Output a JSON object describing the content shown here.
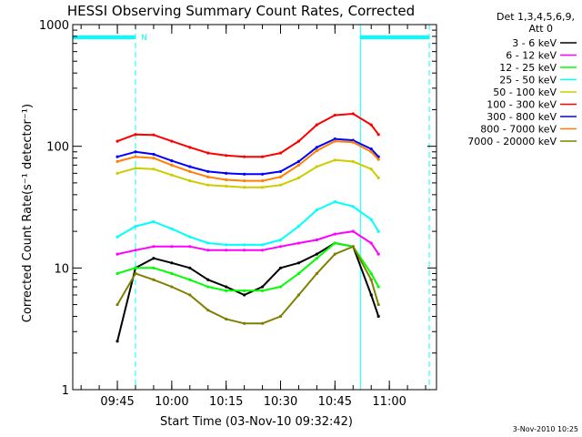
{
  "chart_data": {
    "type": "line",
    "title": "HESSI Observing Summary Count Rates, Corrected",
    "xlabel": "Start Time (03-Nov-10 09:32:42)",
    "ylabel": "Corrected Count Rate",
    "ylabel_units": "(s⁻¹ detector⁻¹)",
    "yscale": "log",
    "ylim": [
      1,
      1000
    ],
    "xlim": [
      "09:32:42",
      "11:13:00"
    ],
    "x_ticks": [
      "09:45",
      "10:00",
      "10:15",
      "10:30",
      "10:45",
      "11:00"
    ],
    "y_ticks": [
      "1",
      "10",
      "100",
      "1000"
    ],
    "grid": false,
    "legend_position": "right",
    "legend_header": [
      "Det 1,3,4,5,6,9,",
      "Att 0"
    ],
    "footer_date": "3-Nov-2010 10:25",
    "annotations": [
      {
        "text": "N",
        "time": "09:50:00"
      }
    ],
    "status_bars": [
      {
        "start": "09:32:42",
        "end": "09:50:00"
      },
      {
        "start": "10:52:00",
        "end": "11:11:00"
      }
    ],
    "vertical_markers": [
      {
        "time": "09:32:42",
        "style": "solid"
      },
      {
        "time": "09:50:00",
        "style": "dashed"
      },
      {
        "time": "10:52:00",
        "style": "solid"
      },
      {
        "time": "11:11:00",
        "style": "dashed"
      }
    ],
    "data_start": "09:45",
    "data_end": "10:57",
    "x_times": [
      "09:45",
      "09:50",
      "09:55",
      "10:00",
      "10:05",
      "10:10",
      "10:15",
      "10:20",
      "10:25",
      "10:30",
      "10:35",
      "10:40",
      "10:45",
      "10:50",
      "10:55",
      "10:57"
    ],
    "series": [
      {
        "name": "3 - 6 keV",
        "color": "#000000",
        "values": [
          2.5,
          10,
          12,
          11,
          10,
          8,
          7,
          6,
          7,
          10,
          11,
          13,
          16,
          15,
          6,
          4
        ]
      },
      {
        "name": "6 - 12 keV",
        "color": "#ff00ff",
        "values": [
          13,
          14,
          15,
          15,
          15,
          14,
          14,
          14,
          14,
          15,
          16,
          17,
          19,
          20,
          16,
          13
        ]
      },
      {
        "name": "12 - 25 keV",
        "color": "#00ff00",
        "values": [
          9,
          10,
          10,
          9,
          8,
          7,
          6.5,
          6.5,
          6.5,
          7,
          9,
          12,
          16,
          15,
          9,
          7
        ]
      },
      {
        "name": "25 - 50 keV",
        "color": "#00ffff",
        "values": [
          18,
          22,
          24,
          21,
          18,
          16,
          15.5,
          15.5,
          15.5,
          17,
          22,
          30,
          35,
          32,
          25,
          20
        ]
      },
      {
        "name": "50 - 100 keV",
        "color": "#cccc00",
        "values": [
          60,
          66,
          65,
          58,
          52,
          48,
          47,
          46,
          46,
          48,
          55,
          68,
          77,
          75,
          65,
          55
        ]
      },
      {
        "name": "100 - 300 keV",
        "color": "#ff0000",
        "values": [
          110,
          125,
          124,
          110,
          98,
          88,
          84,
          82,
          82,
          88,
          110,
          150,
          180,
          185,
          150,
          125
        ]
      },
      {
        "name": "300 - 800 keV",
        "color": "#0000ff",
        "values": [
          82,
          90,
          86,
          76,
          68,
          62,
          60,
          59,
          59,
          62,
          75,
          98,
          115,
          112,
          95,
          82
        ]
      },
      {
        "name": "800 - 7000 keV",
        "color": "#ff8000",
        "values": [
          75,
          82,
          80,
          70,
          62,
          56,
          53,
          52,
          52,
          56,
          70,
          92,
          110,
          108,
          90,
          78
        ]
      },
      {
        "name": "7000 - 20000 keV",
        "color": "#808000",
        "values": [
          5,
          9,
          8,
          7,
          6,
          4.5,
          3.8,
          3.5,
          3.5,
          4,
          6,
          9,
          13,
          15,
          8,
          5
        ]
      }
    ]
  }
}
